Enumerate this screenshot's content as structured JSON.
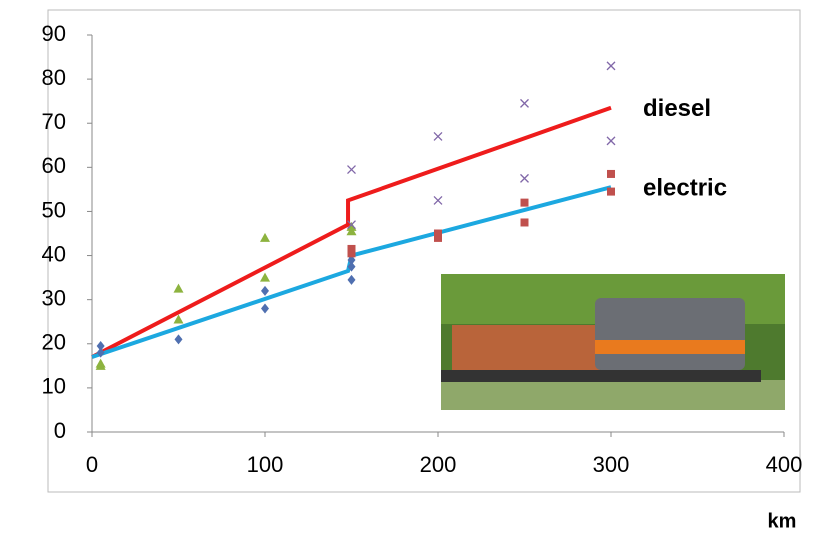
{
  "chart_data": {
    "type": "scatter",
    "xlim": [
      0,
      400
    ],
    "xticks": [
      0,
      100,
      200,
      300,
      400
    ],
    "ylim": [
      0,
      90
    ],
    "yticks": [
      0,
      10,
      20,
      30,
      40,
      50,
      60,
      70,
      80,
      90
    ],
    "grid": false,
    "x_label": "km",
    "series": [
      {
        "color": "#4f6fb0",
        "marker": "diamond",
        "x": [
          5,
          5,
          50,
          100,
          100,
          150,
          150,
          150
        ],
        "values": [
          19.5,
          18,
          21,
          32,
          28,
          34.5,
          39,
          37.5
        ]
      },
      {
        "color": "#c0504d",
        "marker": "square",
        "x": [
          150,
          150,
          200,
          200,
          250,
          250,
          300,
          300
        ],
        "values": [
          41.5,
          40.5,
          45,
          44,
          52,
          47.5,
          58.5,
          54.5
        ]
      },
      {
        "color": "#8db33f",
        "marker": "triangle",
        "x": [
          5,
          5,
          50,
          50,
          100,
          100,
          150,
          150
        ],
        "values": [
          15.5,
          15,
          32.5,
          25.5,
          44,
          35,
          45.5,
          46.5
        ]
      },
      {
        "color": "#8067a8",
        "marker": "x",
        "x": [
          150,
          150,
          200,
          200,
          250,
          250,
          300,
          300
        ],
        "values": [
          59.5,
          47,
          67,
          52.5,
          74.5,
          57.5,
          83,
          66
        ]
      }
    ],
    "lines": [
      {
        "name": "diesel",
        "color": "#ee1c1c",
        "x": [
          0,
          148,
          148,
          300
        ],
        "values": [
          17,
          47,
          52.5,
          73.5
        ]
      },
      {
        "name": "electric",
        "color": "#1ca8e0",
        "x": [
          0,
          148,
          150,
          300
        ],
        "values": [
          17,
          36.5,
          40,
          55.5
        ]
      }
    ]
  }
}
